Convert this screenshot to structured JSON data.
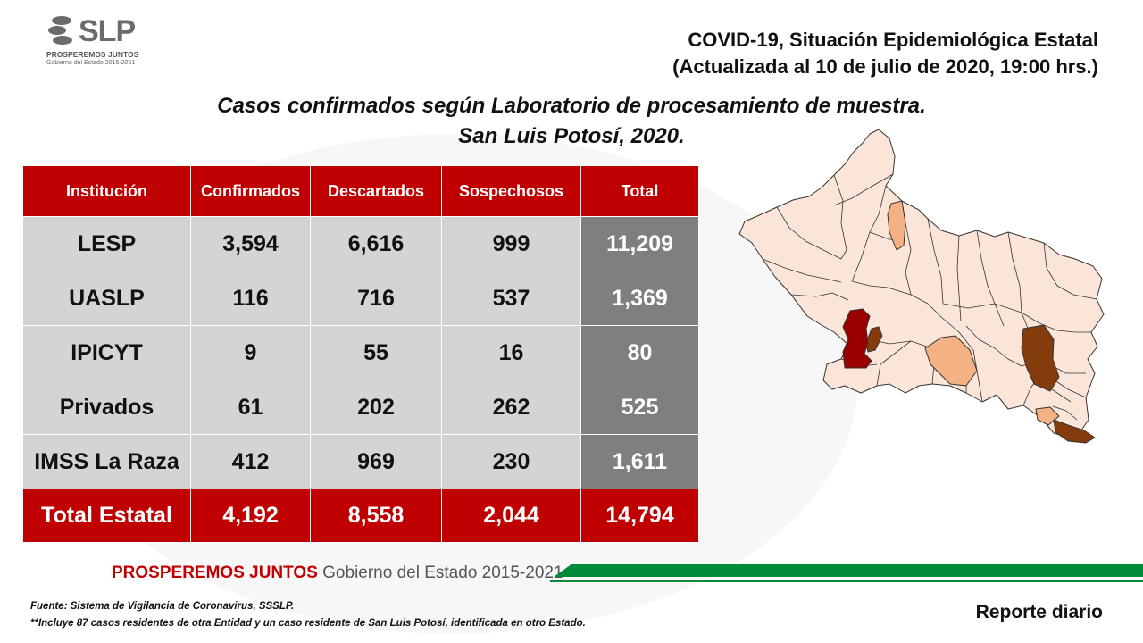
{
  "logo": {
    "name": "SLP",
    "slogan": "PROSPEREMOS JUNTOS",
    "government": "Gobierno del Estado 2015-2021"
  },
  "header": {
    "line1": "COVID-19, Situación Epidemiológica Estatal",
    "line2": "(Actualizada al 10 de julio de 2020, 19:00 hrs.)"
  },
  "subtitle": {
    "line1": "Casos confirmados según Laboratorio de procesamiento de muestra.",
    "line2": "San Luis Potosí, 2020."
  },
  "chart_data": {
    "type": "table",
    "columns": [
      "Institución",
      "Confirmados",
      "Descartados",
      "Sospechosos",
      "Total"
    ],
    "rows": [
      [
        "LESP",
        "3,594",
        "6,616",
        "999",
        "11,209"
      ],
      [
        "UASLP",
        "116",
        "716",
        "537",
        "1,369"
      ],
      [
        "IPICYT",
        "9",
        "55",
        "16",
        "80"
      ],
      [
        "Privados",
        "61",
        "202",
        "262",
        "525"
      ],
      [
        "IMSS La Raza",
        "412",
        "969",
        "230",
        "1,611"
      ]
    ],
    "total_row": [
      "Total Estatal",
      "4,192",
      "8,558",
      "2,044",
      "14,794"
    ]
  },
  "map": {
    "colors": {
      "level_low": "#fbe5d9",
      "level_medium": "#f4b183",
      "level_high": "#843c0c",
      "level_max": "#9b0000",
      "border": "#333333"
    }
  },
  "footer": {
    "brand_bold": "PROSPEREMOS JUNTOS",
    "brand_regular": "Gobierno del Estado 2015-2021",
    "source_line1": "Fuente: Sistema de Vigilancia de Coronavirus, SSSLP.",
    "source_line2": "**Incluye 87 casos residentes de otra Entidad y un caso residente de San Luis Potosí, identificada en otro Estado.",
    "report_label": "Reporte diario"
  },
  "colors": {
    "header_red": "#c00000",
    "cell_gray": "#d4d4d4",
    "total_gray": "#7f7f7f",
    "footer_green": "#008a3a"
  }
}
